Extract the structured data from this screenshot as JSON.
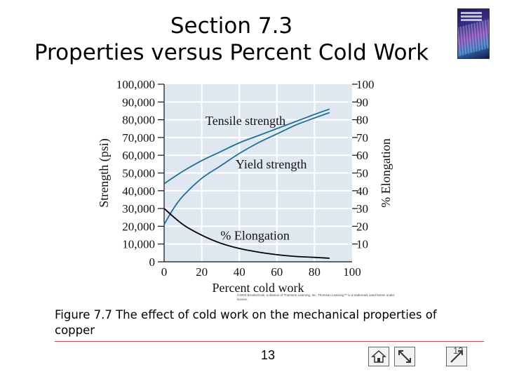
{
  "slide": {
    "title_line1": "Section 7.3",
    "title_line2": "Properties versus Percent Cold Work",
    "caption": "Figure 7.7 The effect of cold work on the mechanical properties of copper",
    "copyright": "©2003 Brooks/Cole, a division of Thomson Learning, Inc. Thomson Learning™ is a trademark used herein under license.",
    "page_number": "13",
    "page_number_corner": "13"
  },
  "chart_data": {
    "type": "line",
    "xlabel": "Percent cold work",
    "ylabel_left": "Strength (psi)",
    "ylabel_right": "% Elongation",
    "xlim": [
      0,
      100
    ],
    "ylim_left": [
      0,
      100000
    ],
    "ylim_right": [
      0,
      100
    ],
    "x_ticks": [
      "0",
      "20",
      "40",
      "60",
      "80",
      "100"
    ],
    "y_left_ticks": [
      "0",
      "10,000",
      "20,000",
      "30,000",
      "40,000",
      "50,000",
      "60,000",
      "70,000",
      "80,000",
      "90,000",
      "100,000"
    ],
    "y_right_ticks": [
      "10",
      "20",
      "30",
      "40",
      "50",
      "60",
      "70",
      "80",
      "90",
      "100"
    ],
    "series": [
      {
        "name": "Tensile strength",
        "axis": "left",
        "color": "#1f6f96",
        "x": [
          0,
          10,
          20,
          30,
          40,
          50,
          60,
          70,
          80,
          88
        ],
        "y": [
          44000,
          51000,
          57000,
          62000,
          67000,
          71000,
          75000,
          79000,
          83000,
          86000
        ]
      },
      {
        "name": "Yield strength",
        "axis": "left",
        "color": "#1f6f96",
        "x": [
          0,
          5,
          10,
          20,
          30,
          40,
          50,
          60,
          70,
          80,
          88
        ],
        "y": [
          21000,
          30000,
          37000,
          47000,
          54000,
          61000,
          67000,
          72000,
          77000,
          81000,
          84000
        ]
      },
      {
        "name": "% Elongation",
        "axis": "right",
        "color": "#000000",
        "x": [
          0,
          10,
          20,
          30,
          40,
          50,
          60,
          70,
          80,
          88
        ],
        "y": [
          30,
          21,
          15,
          10.5,
          7.5,
          5.5,
          4,
          3,
          2.5,
          2
        ]
      }
    ],
    "colors": {
      "plot_background": "#dfe7f1",
      "grid": "#ffffff"
    }
  }
}
